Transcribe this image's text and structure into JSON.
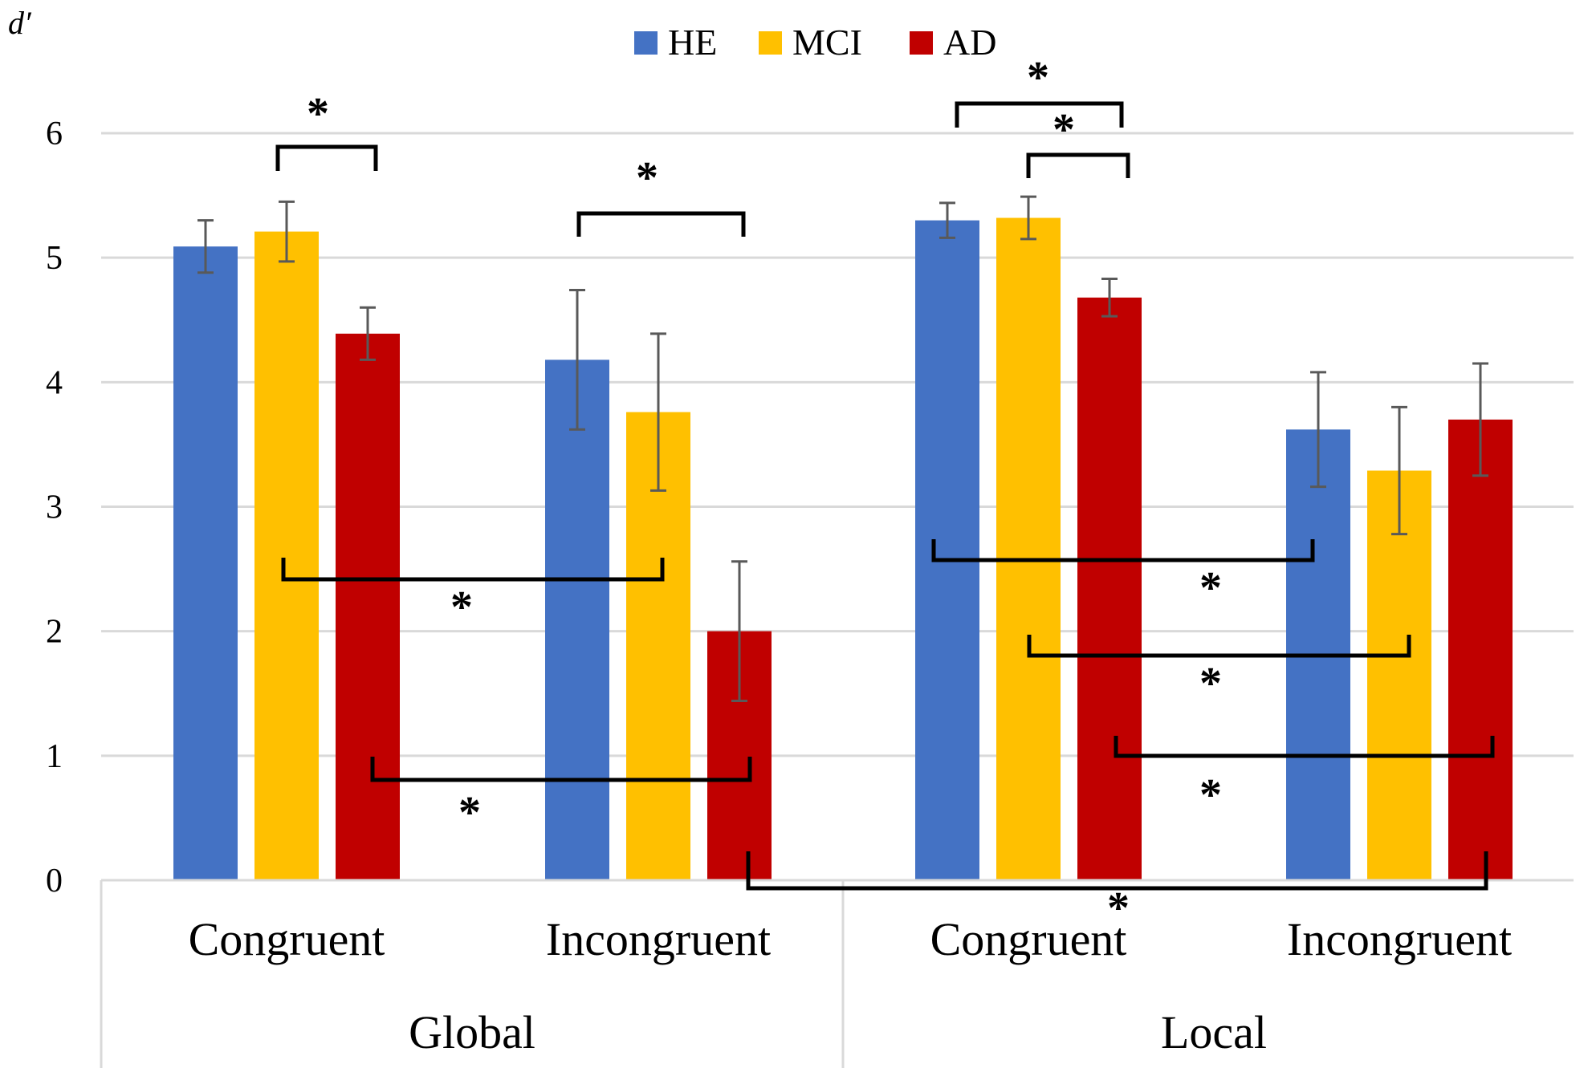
{
  "chart_data": {
    "type": "bar",
    "ylabel": "d′",
    "ylim": [
      0,
      6
    ],
    "yticks": [
      "0",
      "1",
      "2",
      "3",
      "4",
      "5",
      "6"
    ],
    "grid": true,
    "legend_position": "top-center",
    "groups": [
      {
        "label": "Global",
        "categories": [
          "Congruent",
          "Incongruent"
        ]
      },
      {
        "label": "Local",
        "categories": [
          "Congruent",
          "Incongruent"
        ]
      }
    ],
    "categories": [
      "Global Congruent",
      "Global Incongruent",
      "Local Congruent",
      "Local Incongruent"
    ],
    "series": [
      {
        "name": "HE",
        "color": "#4472C4",
        "values": [
          5.09,
          4.18,
          5.3,
          3.62
        ],
        "error": [
          0.21,
          0.56,
          0.14,
          0.46
        ]
      },
      {
        "name": "MCI",
        "color": "#FFC000",
        "values": [
          5.21,
          3.76,
          5.32,
          3.29
        ],
        "error": [
          0.24,
          0.63,
          0.17,
          0.51
        ]
      },
      {
        "name": "AD",
        "color": "#C00000",
        "values": [
          4.39,
          2.0,
          4.68,
          3.7
        ],
        "error": [
          0.21,
          0.56,
          0.15,
          0.45
        ]
      }
    ],
    "significance": [
      {
        "label": "*",
        "from": {
          "category": 0,
          "series": 1
        },
        "to": {
          "category": 0,
          "series": 2
        }
      },
      {
        "label": "*",
        "from": {
          "category": 1,
          "series": 0
        },
        "to": {
          "category": 1,
          "series": 2
        }
      },
      {
        "label": "*",
        "from": {
          "category": 2,
          "series": 0
        },
        "to": {
          "category": 2,
          "series": 2
        }
      },
      {
        "label": "*",
        "from": {
          "category": 2,
          "series": 1
        },
        "to": {
          "category": 2,
          "series": 2
        }
      },
      {
        "label": "*",
        "from": {
          "category": 0,
          "series": 1
        },
        "to": {
          "category": 1,
          "series": 1
        }
      },
      {
        "label": "*",
        "from": {
          "category": 0,
          "series": 2
        },
        "to": {
          "category": 1,
          "series": 2
        }
      },
      {
        "label": "*",
        "from": {
          "category": 2,
          "series": 0
        },
        "to": {
          "category": 3,
          "series": 0
        }
      },
      {
        "label": "*",
        "from": {
          "category": 2,
          "series": 1
        },
        "to": {
          "category": 3,
          "series": 1
        }
      },
      {
        "label": "*",
        "from": {
          "category": 2,
          "series": 2
        },
        "to": {
          "category": 3,
          "series": 2
        }
      },
      {
        "label": "*",
        "from": {
          "category": 1,
          "series": 2
        },
        "to": {
          "category": 3,
          "series": 2
        }
      }
    ]
  }
}
